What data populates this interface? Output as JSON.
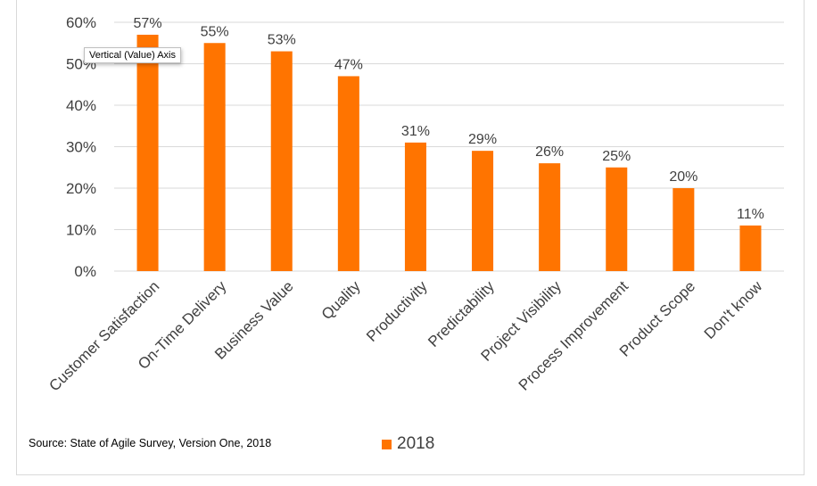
{
  "chart_data": {
    "type": "bar",
    "title": "",
    "xlabel": "",
    "ylabel": "",
    "categories": [
      "Customer Satisfaction",
      "On-Time Delivery",
      "Business Value",
      "Quality",
      "Productivity",
      "Predictability",
      "Project Visibility",
      "Process Improvement",
      "Product Scope",
      "Don't know"
    ],
    "series": [
      {
        "name": "2018",
        "values": [
          57,
          55,
          53,
          47,
          31,
          29,
          26,
          25,
          20,
          11
        ],
        "color": "#ff7400"
      }
    ],
    "data_labels": [
      "57%",
      "55%",
      "53%",
      "47%",
      "31%",
      "29%",
      "26%",
      "25%",
      "20%",
      "11%"
    ],
    "ylim": [
      0,
      60
    ],
    "yticks": [
      0,
      10,
      20,
      30,
      40,
      50,
      60
    ],
    "ytick_labels": [
      "0%",
      "10%",
      "20%",
      "30%",
      "40%",
      "50%",
      "60%"
    ],
    "grid": true,
    "legend": {
      "placement": "bottom",
      "entries": [
        "2018"
      ]
    },
    "annotation": "Source: State of Agile Survey, Version One, 2018"
  },
  "tooltip": {
    "text": "Vertical (Value) Axis"
  },
  "colors": {
    "bar": "#ff7400",
    "grid": "#d9d9d9",
    "text": "#404040"
  }
}
